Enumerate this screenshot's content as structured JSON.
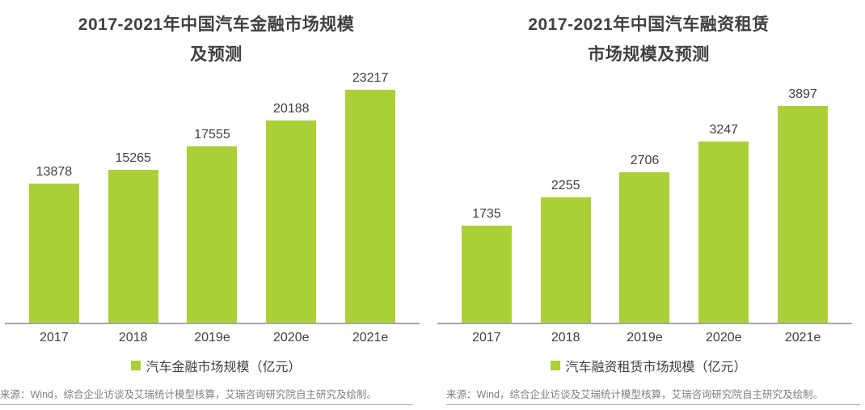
{
  "palette": {
    "bar_green": "#abd037",
    "title_text": "#3f3f3f",
    "body_text": "#404040",
    "axis_line": "#a6a6a6",
    "source_text": "#808080",
    "source_rule": "#a6a6a6"
  },
  "chart_data": [
    {
      "type": "bar",
      "title": "2017-2021年中国汽车金融市场规模及预测",
      "title_lines": [
        "2017-2021年中国汽车金融市场规模",
        "及预测"
      ],
      "categories": [
        "2017",
        "2018",
        "2019e",
        "2020e",
        "2021e"
      ],
      "values": [
        13878,
        15265,
        17555,
        20188,
        23217
      ],
      "data_labels": [
        "13878",
        "15265",
        "17555",
        "20188",
        "23217"
      ],
      "legend": [
        "汽车金融市场规模（亿元）"
      ],
      "legend_position": "bottom",
      "bar_color": "#abd037",
      "ylim": [
        0,
        25000
      ],
      "grid": false,
      "xlabel": "",
      "ylabel": "",
      "source": "来源：Wind，综合企业访谈及艾瑞统计模型核算，艾瑞咨询研究院自主研究及绘制。"
    },
    {
      "type": "bar",
      "title": "2017-2021年中国汽车融资租赁市场规模及预测",
      "title_lines": [
        "2017-2021年中国汽车融资租赁",
        "市场规模及预测"
      ],
      "categories": [
        "2017",
        "2018",
        "2019e",
        "2020e",
        "2021e"
      ],
      "values": [
        1735,
        2255,
        2706,
        3247,
        3897
      ],
      "data_labels": [
        "1735",
        "2255",
        "2706",
        "3247",
        "3897"
      ],
      "legend": [
        "汽车融资租赁市场规模（亿元）"
      ],
      "legend_position": "bottom",
      "bar_color": "#abd037",
      "ylim": [
        0,
        4500
      ],
      "grid": false,
      "xlabel": "",
      "ylabel": "",
      "source": "来源：Wind，综合企业访谈及艾瑞统计模型核算，艾瑞咨询研究院自主研究及绘制。"
    }
  ]
}
